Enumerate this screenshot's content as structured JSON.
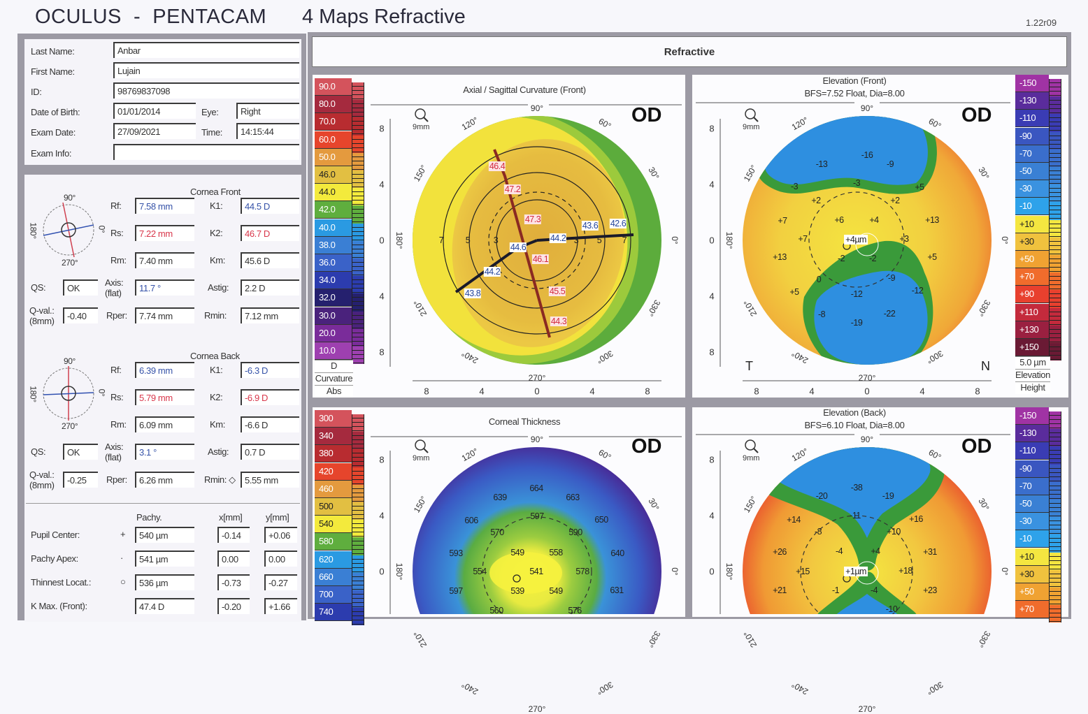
{
  "header": {
    "brand": "OCULUS  -  PENTACAM",
    "title": "4 Maps Refractive",
    "version": "1.22r09"
  },
  "patient": {
    "last_name_label": "Last Name:",
    "last_name": "Anbar",
    "first_name_label": "First Name:",
    "first_name": "Lujain",
    "id_label": "ID:",
    "id": "98769837098",
    "dob_label": "Date of Birth:",
    "dob": "01/01/2014",
    "eye_label": "Eye:",
    "eye": "Right",
    "exam_date_label": "Exam Date:",
    "exam_date": "27/09/2021",
    "time_label": "Time:",
    "time": "14:15:44",
    "exam_info_label": "Exam Info:",
    "exam_info": ""
  },
  "compass": {
    "top": "90°",
    "left": "180°",
    "bottom": "270°",
    "right": "0°"
  },
  "cornea_front": {
    "title": "Cornea Front",
    "rf_label": "Rf:",
    "rf": "7.58 mm",
    "k1_label": "K1:",
    "k1": "44.5 D",
    "rs_label": "Rs:",
    "rs": "7.22 mm",
    "k2_label": "K2:",
    "k2": "46.7 D",
    "rm_label": "Rm:",
    "rm": "7.40 mm",
    "km_label": "Km:",
    "km": "45.6 D",
    "qs_label": "QS:",
    "qs": "OK",
    "axis_label": "Axis:",
    "axis_sub": "(flat)",
    "axis": "11.7 °",
    "astig_label": "Astig:",
    "astig": "2.2 D",
    "qval_label": "Q-val.:",
    "qval_sub": "(8mm)",
    "qval": "-0.40",
    "rper_label": "Rper:",
    "rper": "7.74 mm",
    "rmin_label": "Rmin:",
    "rmin": "7.12 mm"
  },
  "cornea_back": {
    "title": "Cornea Back",
    "rf_label": "Rf:",
    "rf": "6.39 mm",
    "k1_label": "K1:",
    "k1": "-6.3 D",
    "rs_label": "Rs:",
    "rs": "5.79 mm",
    "k2_label": "K2:",
    "k2": "-6.9 D",
    "rm_label": "Rm:",
    "rm": "6.09 mm",
    "km_label": "Km:",
    "km": "-6.6 D",
    "qs_label": "QS:",
    "qs": "OK",
    "axis_label": "Axis:",
    "axis_sub": "(flat)",
    "axis": "3.1 °",
    "astig_label": "Astig:",
    "astig": "0.7 D",
    "qval_label": "Q-val.:",
    "qval_sub": "(8mm)",
    "qval": "-0.25",
    "rper_label": "Rper:",
    "rper": "6.26 mm",
    "rmin_label": "Rmin: ◇",
    "rmin": "5.55 mm"
  },
  "pachy": {
    "col_pachy": "Pachy.",
    "col_x": "x[mm]",
    "col_y": "y[mm]",
    "rows": [
      {
        "label": "Pupil Center:",
        "symbol": "+",
        "pachy": "540 µm",
        "x": "-0.14",
        "y": "+0.06"
      },
      {
        "label": "Pachy Apex:",
        "symbol": "·",
        "pachy": "541 µm",
        "x": "0.00",
        "y": "0.00"
      },
      {
        "label": "Thinnest Locat.:",
        "symbol": "○",
        "pachy": "536 µm",
        "x": "-0.73",
        "y": "-0.27"
      },
      {
        "label": "K Max. (Front):",
        "symbol": "",
        "pachy": "47.4 D",
        "x": "-0.20",
        "y": "+1.66"
      }
    ]
  },
  "refractive_header": "Refractive",
  "common": {
    "od": "OD",
    "zoom": "9mm",
    "axis_ticks": [
      "8",
      "4",
      "0",
      "4",
      "8"
    ],
    "degrees": [
      "0°",
      "30°",
      "60°",
      "90°",
      "120°",
      "150°",
      "180°",
      "210°",
      "240°",
      "270°",
      "300°",
      "330°"
    ],
    "temporal": "T",
    "nasal": "N"
  },
  "maps": {
    "axial": {
      "title": "Axial / Sagittal Curvature (Front)",
      "scale": {
        "values": [
          "90.0",
          "80.0",
          "70.0",
          "60.0",
          "50.0",
          "46.0",
          "44.0",
          "42.0",
          "40.0",
          "38.0",
          "36.0",
          "34.0",
          "32.0",
          "30.0",
          "20.0",
          "10.0"
        ],
        "colors": [
          "#d4535c",
          "#a52a3e",
          "#b82c30",
          "#e6452c",
          "#e49a3e",
          "#e2bf42",
          "#f3ea3c",
          "#5fae3e",
          "#2a9ae2",
          "#3a7fd4",
          "#3a62c8",
          "#2c3cae",
          "#25206e",
          "#4a227c",
          "#7a2c9a",
          "#9e40b0"
        ],
        "unit": "D",
        "type": "Curvature",
        "mode": "Abs"
      },
      "labels": [
        "46.4",
        "47.2",
        "47.3",
        "46.1",
        "45.5",
        "44.3",
        "44.2",
        "43.6",
        "42.6",
        "44.6",
        "44.2",
        "43.8",
        "7",
        "5",
        "3",
        "3",
        "5",
        "7"
      ]
    },
    "elev_front": {
      "title": "Elevation (Front)",
      "subtitle": "BFS=7.52 Float, Dia=8.00",
      "scale": {
        "values": [
          "-150",
          "-130",
          "-110",
          "-90",
          "-70",
          "-50",
          "-30",
          "-10",
          "+10",
          "+30",
          "+50",
          "+70",
          "+90",
          "+110",
          "+130",
          "+150"
        ],
        "colors": [
          "#a033a4",
          "#5a2c9c",
          "#3a3cb4",
          "#3a56c0",
          "#3a6ecc",
          "#3a80d4",
          "#3a92e0",
          "#2ea2ea",
          "#f4e640",
          "#f0c23e",
          "#f0a232",
          "#f06c2c",
          "#e8402e",
          "#c42a3c",
          "#9a2040",
          "#6a1a34"
        ],
        "unit": "5.0 µm",
        "type": "Elevation",
        "mode": "Height"
      },
      "labels": [
        "-16",
        "-13",
        "-9",
        "-3",
        "-3",
        "+5",
        "+2",
        "+2",
        "+7",
        "+6",
        "+4",
        "+13",
        "+7",
        "+4µm",
        "+3",
        "+13",
        "-2",
        "-2",
        "+5",
        "0",
        "-9",
        "+5",
        "-12",
        "-12",
        "-8",
        "-22",
        "-19"
      ]
    },
    "thickness": {
      "title": "Corneal Thickness",
      "scale": {
        "values": [
          "300",
          "340",
          "380",
          "420",
          "460",
          "500",
          "540",
          "580",
          "620",
          "660",
          "700",
          "740"
        ],
        "colors": [
          "#d4535c",
          "#a52a3e",
          "#b82c30",
          "#e6452c",
          "#e49a3e",
          "#e2bf42",
          "#f3ea3c",
          "#5fae3e",
          "#2a9ae2",
          "#3a7fd4",
          "#3a62c8",
          "#2c3cae"
        ]
      },
      "labels": [
        "664",
        "639",
        "663",
        "606",
        "597",
        "650",
        "570",
        "590",
        "593",
        "549",
        "558",
        "640",
        "554",
        "541",
        "578",
        "597",
        "539",
        "549",
        "631",
        "560",
        "576"
      ]
    },
    "elev_back": {
      "title": "Elevation (Back)",
      "subtitle": "BFS=6.10 Float, Dia=8.00",
      "scale": {
        "values": [
          "-150",
          "-130",
          "-110",
          "-90",
          "-70",
          "-50",
          "-30",
          "-10",
          "+10",
          "+30",
          "+50",
          "+70"
        ],
        "colors": [
          "#a033a4",
          "#5a2c9c",
          "#3a3cb4",
          "#3a56c0",
          "#3a6ecc",
          "#3a80d4",
          "#3a92e0",
          "#2ea2ea",
          "#f4e640",
          "#f0c23e",
          "#f0a232",
          "#f06c2c"
        ]
      },
      "labels": [
        "-38",
        "-20",
        "-19",
        "-11",
        "+14",
        "+16",
        "-8",
        "+10",
        "+26",
        "-4",
        "+4",
        "+31",
        "+15",
        "+1µm",
        "+18",
        "+21",
        "-1",
        "-4",
        "+23",
        "-10"
      ]
    }
  }
}
